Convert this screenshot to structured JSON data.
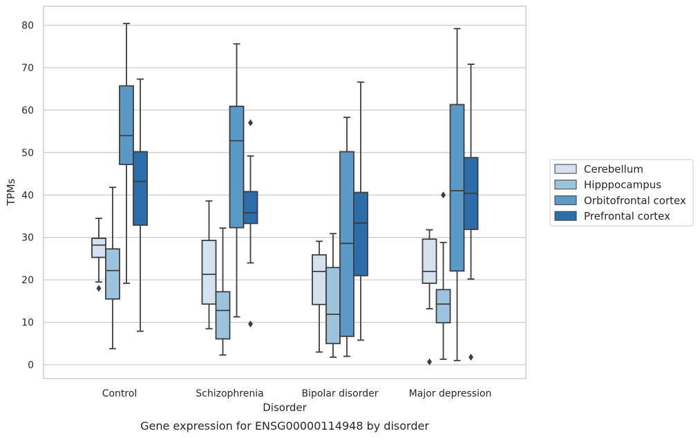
{
  "chart_data": {
    "type": "box",
    "caption": "Gene expression for ENSG00000114948 by disorder",
    "xlabel": "Disorder",
    "ylabel": "TPMs",
    "ylim": [
      -3,
      84.5
    ],
    "yticks": [
      0,
      10,
      20,
      30,
      40,
      50,
      60,
      70,
      80
    ],
    "grid": true,
    "legend_position": "right",
    "categories": [
      "Control",
      "Schizophrenia",
      "Bipolar disorder",
      "Major depression"
    ],
    "series": [
      {
        "name": "Cerebellum",
        "color": "#d4e2f0",
        "boxes": [
          {
            "whisker_low": 19.5,
            "q1": 25.3,
            "median": 28.2,
            "q3": 29.8,
            "whisker_high": 34.5,
            "outliers": [
              18
            ]
          },
          {
            "whisker_low": 8.5,
            "q1": 14.3,
            "median": 21.3,
            "q3": 29.3,
            "whisker_high": 38.6,
            "outliers": []
          },
          {
            "whisker_low": 3,
            "q1": 14.2,
            "median": 22,
            "q3": 25.9,
            "whisker_high": 29.1,
            "outliers": []
          },
          {
            "whisker_low": 13.2,
            "q1": 19.2,
            "median": 22,
            "q3": 29.6,
            "whisker_high": 31.8,
            "outliers": [
              0.7
            ]
          }
        ]
      },
      {
        "name": "Hipppocampus",
        "color": "#9cc4df",
        "boxes": [
          {
            "whisker_low": 3.8,
            "q1": 15.5,
            "median": 22.2,
            "q3": 27.3,
            "whisker_high": 41.8,
            "outliers": []
          },
          {
            "whisker_low": 2.3,
            "q1": 6.1,
            "median": 12.8,
            "q3": 17.2,
            "whisker_high": 32.2,
            "outliers": []
          },
          {
            "whisker_low": 1.8,
            "q1": 5,
            "median": 11.9,
            "q3": 22.9,
            "whisker_high": 30.9,
            "outliers": []
          },
          {
            "whisker_low": 1.3,
            "q1": 9.9,
            "median": 14.3,
            "q3": 17.7,
            "whisker_high": 28.8,
            "outliers": [
              40
            ]
          }
        ]
      },
      {
        "name": "Orbitofrontal cortex",
        "color": "#5b9ac6",
        "boxes": [
          {
            "whisker_low": 19.2,
            "q1": 47.2,
            "median": 54,
            "q3": 65.7,
            "whisker_high": 80.4,
            "outliers": []
          },
          {
            "whisker_low": 11.3,
            "q1": 32.3,
            "median": 52.8,
            "q3": 60.9,
            "whisker_high": 75.6,
            "outliers": []
          },
          {
            "whisker_low": 2,
            "q1": 6.7,
            "median": 28.6,
            "q3": 50.2,
            "whisker_high": 58.3,
            "outliers": []
          },
          {
            "whisker_low": 1,
            "q1": 22.1,
            "median": 41,
            "q3": 61.3,
            "whisker_high": 79.2,
            "outliers": []
          }
        ]
      },
      {
        "name": "Prefrontal cortex",
        "color": "#2c6eab",
        "boxes": [
          {
            "whisker_low": 7.9,
            "q1": 32.9,
            "median": 43.2,
            "q3": 50.2,
            "whisker_high": 67.3,
            "outliers": []
          },
          {
            "whisker_low": 24,
            "q1": 33.3,
            "median": 35.8,
            "q3": 40.8,
            "whisker_high": 49.2,
            "outliers": [
              9.6,
              57
            ]
          },
          {
            "whisker_low": 5.8,
            "q1": 21,
            "median": 33.4,
            "q3": 40.6,
            "whisker_high": 66.6,
            "outliers": []
          },
          {
            "whisker_low": 20.2,
            "q1": 31.9,
            "median": 40.4,
            "q3": 48.8,
            "whisker_high": 70.8,
            "outliers": [
              1.8
            ]
          }
        ]
      }
    ]
  }
}
